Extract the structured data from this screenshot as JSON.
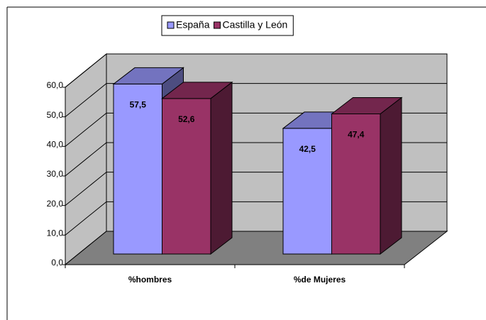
{
  "chart_data": {
    "type": "bar3d",
    "categories": [
      "%hombres",
      "%de Mujeres"
    ],
    "series": [
      {
        "name": "España",
        "color": "#9999ff",
        "values": [
          57.5,
          42.5
        ],
        "value_labels": [
          "57,5",
          "42,5"
        ]
      },
      {
        "name": "Castilla y León",
        "color": "#993366",
        "values": [
          52.6,
          47.4
        ],
        "value_labels": [
          "52,6",
          "47,4"
        ]
      }
    ],
    "ylim": [
      0,
      60
    ],
    "yticks": [
      {
        "value": 0,
        "label": "0,0"
      },
      {
        "value": 10,
        "label": "10,0"
      },
      {
        "value": 20,
        "label": "20,0"
      },
      {
        "value": 30,
        "label": "30,0"
      },
      {
        "value": 40,
        "label": "40,0"
      },
      {
        "value": 50,
        "label": "50,0"
      },
      {
        "value": 60,
        "label": "60,0"
      }
    ],
    "grid": true,
    "legend": "top",
    "wall_color": "#c0c0c0",
    "floor_color": "#808080"
  }
}
